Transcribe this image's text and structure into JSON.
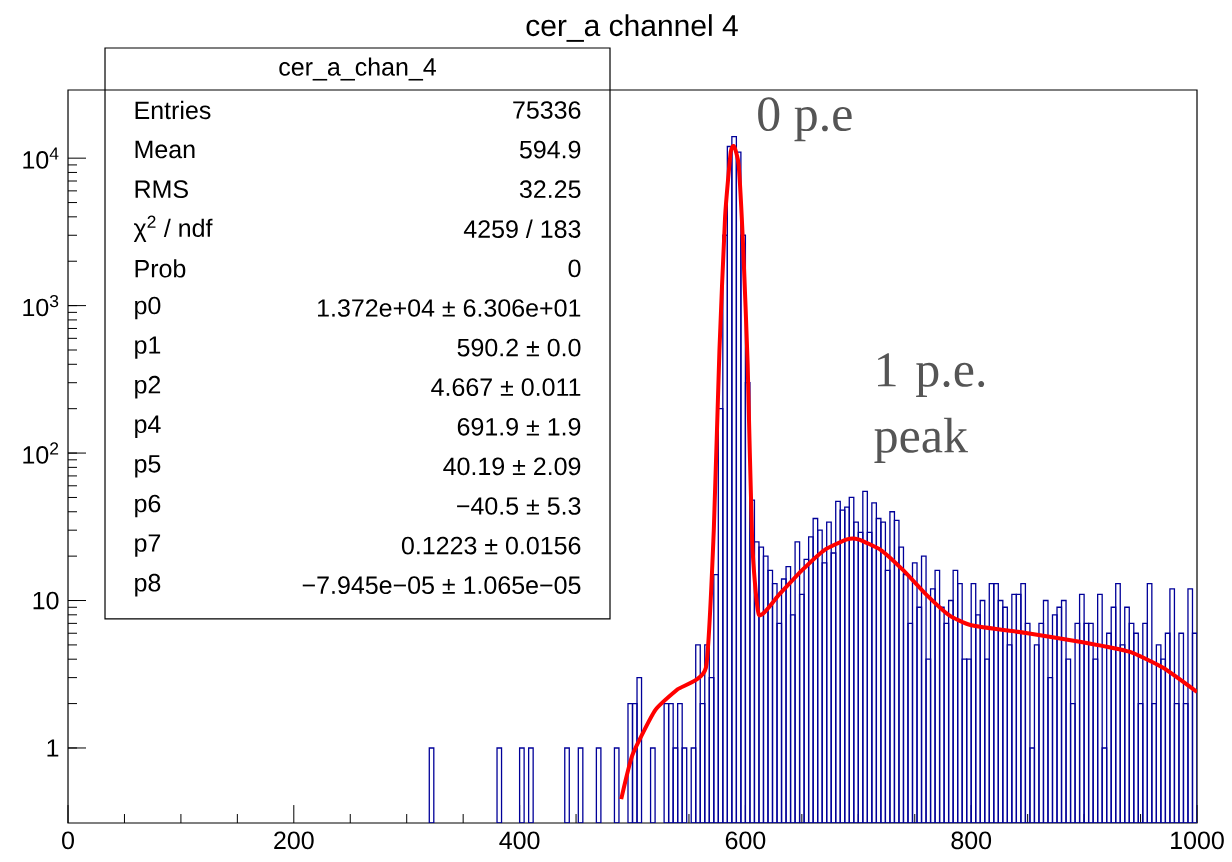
{
  "chart_data": {
    "type": "histogram",
    "title": "cer_a channel 4",
    "color": "#000099",
    "bins": [
      320,
      324,
      328,
      332,
      336,
      340,
      344,
      348,
      352,
      356,
      360,
      364,
      368,
      372,
      376,
      380,
      384,
      388,
      392,
      396,
      400,
      404,
      408,
      412,
      416,
      420,
      424,
      428,
      432,
      436,
      440,
      444,
      448,
      452,
      456,
      460,
      464,
      468,
      472,
      476,
      480,
      484,
      488,
      492,
      496,
      500,
      504,
      508,
      512,
      516,
      520,
      524,
      528,
      532,
      536,
      540,
      544,
      548,
      552,
      556,
      560,
      564,
      568,
      572,
      576,
      580,
      584,
      588,
      592,
      596,
      600,
      604,
      608,
      612,
      616,
      620,
      624,
      628,
      632,
      636,
      640,
      644,
      648,
      652,
      656,
      660,
      664,
      668,
      672,
      676,
      680,
      684,
      688,
      692,
      696,
      700,
      704,
      708,
      712,
      716,
      720,
      724,
      728,
      732,
      736,
      740,
      744,
      748,
      752,
      756,
      760,
      764,
      768,
      772,
      776,
      780,
      784,
      788,
      792,
      796,
      800,
      804,
      808,
      812,
      816,
      820,
      824,
      828,
      832,
      836,
      840,
      844,
      848,
      852,
      856,
      860,
      864,
      868,
      872,
      876,
      880,
      884,
      888,
      892,
      896,
      900,
      904,
      908,
      912,
      916,
      920,
      924,
      928,
      932,
      936,
      940,
      944,
      948,
      952,
      956,
      960,
      964,
      968,
      972,
      976,
      980,
      984,
      988,
      992,
      996,
      1000
    ],
    "values": [
      1,
      null,
      null,
      null,
      null,
      null,
      null,
      null,
      null,
      null,
      null,
      null,
      null,
      null,
      null,
      1,
      null,
      null,
      null,
      null,
      1,
      null,
      1,
      null,
      null,
      null,
      null,
      null,
      null,
      null,
      1,
      null,
      null,
      1,
      null,
      null,
      null,
      1,
      null,
      null,
      null,
      1,
      null,
      null,
      2,
      2,
      3,
      null,
      null,
      1,
      null,
      null,
      2,
      2,
      1,
      2,
      1,
      null,
      1,
      5,
      2,
      5,
      3,
      15,
      200,
      3000,
      12000,
      14000,
      11000,
      3000,
      300,
      48,
      25,
      23,
      20,
      16,
      13,
      7,
      14,
      17,
      8,
      25,
      11,
      19,
      27,
      36,
      30,
      18,
      34,
      21,
      47,
      41,
      43,
      50,
      34,
      29,
      55,
      29,
      46,
      36,
      34,
      16,
      40,
      35,
      23,
      15,
      7,
      18,
      9,
      20,
      4,
      12,
      16,
      9,
      7,
      10,
      16,
      13,
      4,
      4,
      13,
      8,
      10,
      4,
      13,
      13,
      10,
      9,
      5,
      11,
      11,
      13,
      7,
      1,
      5,
      7,
      10,
      3,
      8,
      9,
      10,
      4,
      2,
      7,
      11,
      7,
      7,
      4,
      11,
      1,
      6,
      9,
      13,
      5,
      9,
      7,
      6,
      2,
      7,
      13,
      2,
      5,
      4,
      6,
      12,
      2,
      6,
      2,
      12,
      6
    ],
    "series": [
      {
        "type": "line",
        "color": "#ff0000",
        "x": [
          490,
          500,
          520,
          540,
          565,
          572,
          577,
          582,
          587,
          590,
          594,
          598,
          602,
          606,
          612,
          630,
          650,
          670,
          690,
          700,
          720,
          740,
          760,
          780,
          800,
          850,
          900,
          940,
          970,
          1000
        ],
        "values": [
          0.45,
          0.9,
          1.8,
          2.5,
          3.5,
          30,
          500,
          4000,
          11000,
          12000,
          9000,
          2500,
          400,
          25,
          8,
          11,
          16,
          22,
          26,
          26,
          22,
          16,
          11,
          8,
          6.8,
          6,
          5.2,
          4.5,
          3.5,
          2.4
        ]
      }
    ],
    "xlim": [
      0,
      1000
    ],
    "xticks": [
      0,
      200,
      400,
      600,
      800,
      1000
    ],
    "ylim": [
      0.31,
      29000
    ],
    "yticks": [
      1,
      10,
      {
        "value": 100,
        "label": "10$^{2}$"
      },
      {
        "value": 1000,
        "label": "10$^{3}$"
      },
      {
        "value": 10000,
        "label": "10$^{4}$"
      }
    ],
    "log": "y",
    "grid": false,
    "annotations": [
      "cer_a_chan_4",
      "Entries",
      "75336",
      "Mean",
      "594.9",
      "RMS",
      "32.25",
      "χ$^{2}$ / ndf",
      "4259 / 183",
      "Prob",
      "0",
      "p0",
      "1.372e+04 ± 6.306e+01",
      "p1",
      "590.2 ± 0.0",
      "p2",
      "4.667 ± 0.011",
      "p4",
      "691.9 ± 1.9",
      "p5",
      "40.19 ± 2.09",
      "p6",
      "−40.5 ± 5.3",
      "p7",
      "0.1223 ± 0.0156",
      "p8",
      "−7.945e−05 ± 1.065e−05",
      "0 p.e",
      "1 p.e. peak"
    ]
  }
}
